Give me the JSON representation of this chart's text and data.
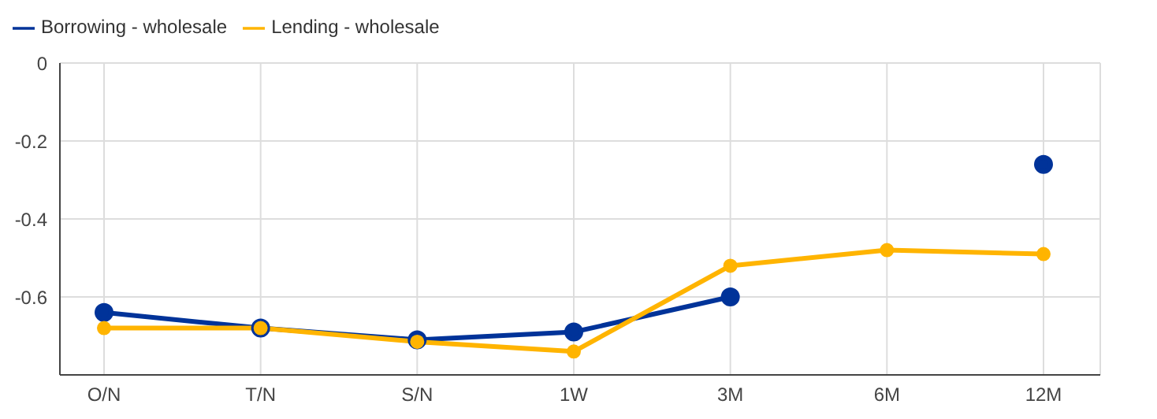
{
  "chart_data": {
    "type": "line",
    "categories": [
      "O/N",
      "T/N",
      "S/N",
      "1W",
      "3M",
      "6M",
      "12M"
    ],
    "series": [
      {
        "name": "Borrowing - wholesale",
        "color": "#003399",
        "values": [
          -0.64,
          -0.68,
          -0.71,
          -0.69,
          -0.6,
          null,
          -0.26
        ]
      },
      {
        "name": "Lending - wholesale",
        "color": "#ffb400",
        "values": [
          -0.68,
          -0.68,
          -0.715,
          -0.74,
          -0.52,
          -0.48,
          -0.49
        ]
      }
    ],
    "ylim": [
      -0.8,
      0
    ],
    "yticks": [
      0,
      -0.2,
      -0.4,
      -0.6
    ],
    "grid": true,
    "legend": "top left",
    "marker": "circle",
    "line_style": "solid"
  }
}
